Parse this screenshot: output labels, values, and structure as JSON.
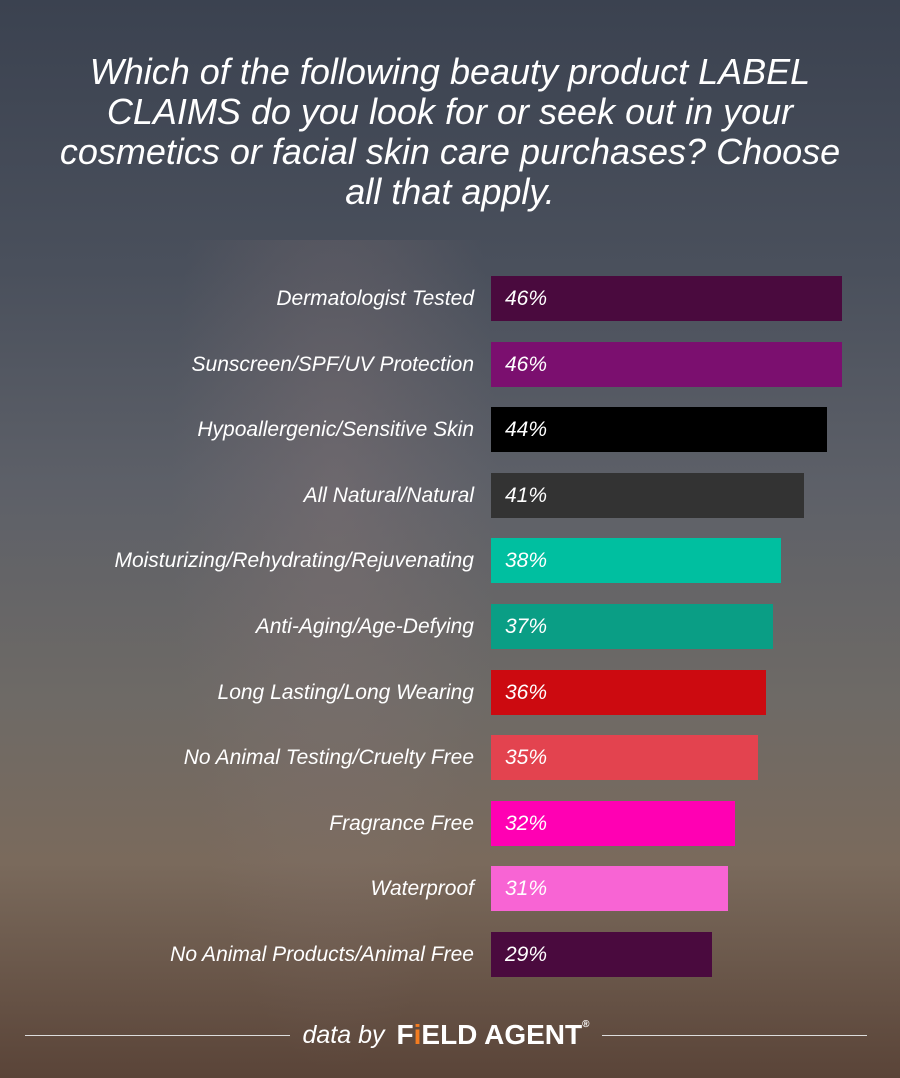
{
  "chart_data": {
    "type": "bar",
    "orientation": "horizontal",
    "title": "Which of the following beauty product LABEL CLAIMS do you look for or seek out in your cosmetics or facial skin care purchases? Choose all that apply.",
    "categories": [
      "Dermatologist Tested",
      "Sunscreen/SPF/UV Protection",
      "Hypoallergenic/Sensitive Skin",
      "All Natural/Natural",
      "Moisturizing/Rehydrating/Rejuvenating",
      "Anti-Aging/Age-Defying",
      "Long Lasting/Long Wearing",
      "No Animal Testing/Cruelty Free",
      "Fragrance Free",
      "Waterproof",
      "No Animal Products/Animal Free"
    ],
    "values": [
      46,
      46,
      44,
      41,
      38,
      37,
      36,
      35,
      32,
      31,
      29
    ],
    "value_labels": [
      "46%",
      "46%",
      "44%",
      "41%",
      "38%",
      "37%",
      "36%",
      "35%",
      "32%",
      "31%",
      "29%"
    ],
    "colors": [
      "#4a0a3e",
      "#7b0f6f",
      "#000000",
      "#333333",
      "#00bfa0",
      "#0a9e85",
      "#cc0a10",
      "#e3434f",
      "#ff00b3",
      "#f864d4",
      "#4a0a3e"
    ],
    "unit": "%",
    "grid": false,
    "legend": "none"
  },
  "footer": {
    "prefix": "data by",
    "brand_pre": "F",
    "brand_i": "i",
    "brand_post": "ELD AGENT",
    "reg": "®"
  }
}
